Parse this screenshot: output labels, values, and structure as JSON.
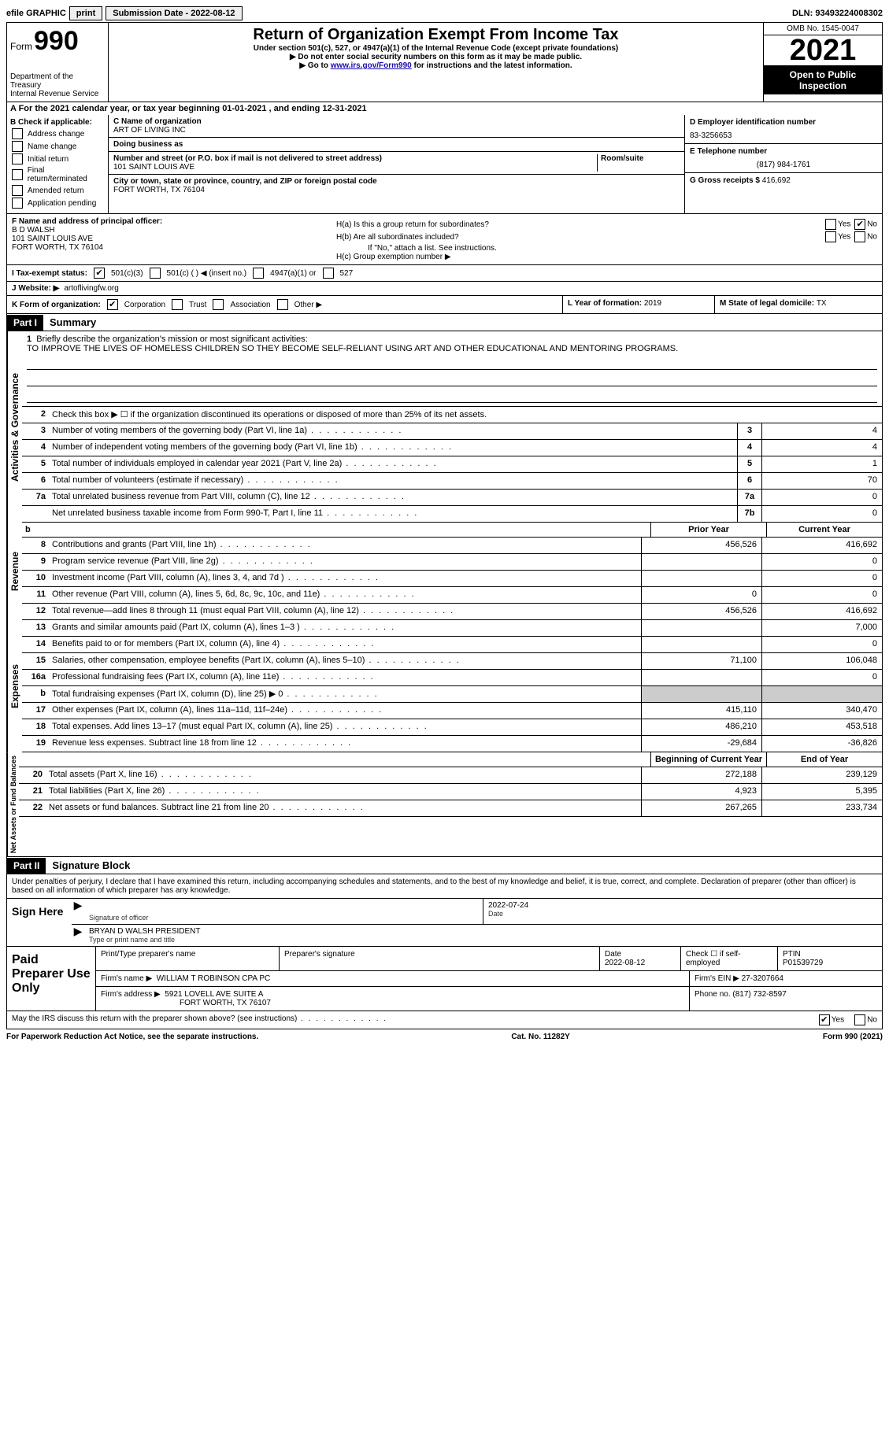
{
  "topbar": {
    "efile": "efile GRAPHIC",
    "print": "print",
    "submission_label": "Submission Date - ",
    "submission_date": "2022-08-12",
    "dln_label": "DLN: ",
    "dln": "93493224008302"
  },
  "header": {
    "form_word": "Form",
    "form_num": "990",
    "dept": "Department of the Treasury\nInternal Revenue Service",
    "title": "Return of Organization Exempt From Income Tax",
    "sub1": "Under section 501(c), 527, or 4947(a)(1) of the Internal Revenue Code (except private foundations)",
    "sub2": "▶ Do not enter social security numbers on this form as it may be made public.",
    "sub3_pre": "▶ Go to ",
    "sub3_link": "www.irs.gov/Form990",
    "sub3_post": " for instructions and the latest information.",
    "omb": "OMB No. 1545-0047",
    "year": "2021",
    "open": "Open to Public Inspection"
  },
  "calyear": {
    "line": "A For the 2021 calendar year, or tax year beginning 01-01-2021   , and ending 12-31-2021"
  },
  "boxB": {
    "label": "B Check if applicable:",
    "opts": [
      "Address change",
      "Name change",
      "Initial return",
      "Final return/terminated",
      "Amended return",
      "Application pending"
    ]
  },
  "boxC": {
    "name_label": "C Name of organization",
    "name": "ART OF LIVING INC",
    "dba_label": "Doing business as",
    "dba": "",
    "addr_label": "Number and street (or P.O. box if mail is not delivered to street address)",
    "room_label": "Room/suite",
    "addr": "101 SAINT LOUIS AVE",
    "city_label": "City or town, state or province, country, and ZIP or foreign postal code",
    "city": "FORT WORTH, TX  76104"
  },
  "boxD": {
    "ein_label": "D Employer identification number",
    "ein": "83-3256653",
    "phone_label": "E Telephone number",
    "phone": "(817) 984-1761",
    "gross_label": "G Gross receipts $ ",
    "gross": "416,692"
  },
  "boxF": {
    "label": "F Name and address of principal officer:",
    "name": "B D WALSH",
    "addr1": "101 SAINT LOUIS AVE",
    "addr2": "FORT WORTH, TX  76104"
  },
  "boxH": {
    "ha": "H(a)  Is this a group return for subordinates?",
    "hb": "H(b)  Are all subordinates included?",
    "hb_note": "If \"No,\" attach a list. See instructions.",
    "hc": "H(c)  Group exemption number ▶",
    "yes": "Yes",
    "no": "No"
  },
  "rowI": {
    "label": "I  Tax-exempt status:",
    "o1": "501(c)(3)",
    "o2": "501(c) (  ) ◀ (insert no.)",
    "o3": "4947(a)(1) or",
    "o4": "527"
  },
  "rowJ": {
    "label": "J  Website: ▶",
    "val": "artoflivingfw.org"
  },
  "rowK": {
    "label": "K Form of organization:",
    "corp": "Corporation",
    "trust": "Trust",
    "assoc": "Association",
    "other": "Other ▶",
    "L_label": "L Year of formation: ",
    "L_val": "2019",
    "M_label": "M State of legal domicile: ",
    "M_val": "TX"
  },
  "part1": {
    "tag": "Part I",
    "title": "Summary"
  },
  "mission": {
    "num": "1",
    "label": "Briefly describe the organization's mission or most significant activities:",
    "text": "TO IMPROVE THE LIVES OF HOMELESS CHILDREN SO THEY BECOME SELF-RELIANT USING ART AND OTHER EDUCATIONAL AND MENTORING PROGRAMS."
  },
  "line2": {
    "num": "2",
    "text": "Check this box ▶ ☐ if the organization discontinued its operations or disposed of more than 25% of its net assets."
  },
  "govLines": [
    {
      "n": "3",
      "d": "Number of voting members of the governing body (Part VI, line 1a)",
      "b": "3",
      "v": "4"
    },
    {
      "n": "4",
      "d": "Number of independent voting members of the governing body (Part VI, line 1b)",
      "b": "4",
      "v": "4"
    },
    {
      "n": "5",
      "d": "Total number of individuals employed in calendar year 2021 (Part V, line 2a)",
      "b": "5",
      "v": "1"
    },
    {
      "n": "6",
      "d": "Total number of volunteers (estimate if necessary)",
      "b": "6",
      "v": "70"
    },
    {
      "n": "7a",
      "d": "Total unrelated business revenue from Part VIII, column (C), line 12",
      "b": "7a",
      "v": "0"
    },
    {
      "n": "",
      "d": "Net unrelated business taxable income from Form 990-T, Part I, line 11",
      "b": "7b",
      "v": "0"
    }
  ],
  "colHeaders": {
    "b_hidden": "b",
    "prior": "Prior Year",
    "current": "Current Year"
  },
  "revLines": [
    {
      "n": "8",
      "d": "Contributions and grants (Part VIII, line 1h)",
      "p": "456,526",
      "c": "416,692"
    },
    {
      "n": "9",
      "d": "Program service revenue (Part VIII, line 2g)",
      "p": "",
      "c": "0"
    },
    {
      "n": "10",
      "d": "Investment income (Part VIII, column (A), lines 3, 4, and 7d )",
      "p": "",
      "c": "0"
    },
    {
      "n": "11",
      "d": "Other revenue (Part VIII, column (A), lines 5, 6d, 8c, 9c, 10c, and 11e)",
      "p": "0",
      "c": "0"
    },
    {
      "n": "12",
      "d": "Total revenue—add lines 8 through 11 (must equal Part VIII, column (A), line 12)",
      "p": "456,526",
      "c": "416,692"
    }
  ],
  "expLines": [
    {
      "n": "13",
      "d": "Grants and similar amounts paid (Part IX, column (A), lines 1–3 )",
      "p": "",
      "c": "7,000"
    },
    {
      "n": "14",
      "d": "Benefits paid to or for members (Part IX, column (A), line 4)",
      "p": "",
      "c": "0"
    },
    {
      "n": "15",
      "d": "Salaries, other compensation, employee benefits (Part IX, column (A), lines 5–10)",
      "p": "71,100",
      "c": "106,048"
    },
    {
      "n": "16a",
      "d": "Professional fundraising fees (Part IX, column (A), line 11e)",
      "p": "",
      "c": "0"
    },
    {
      "n": "b",
      "d": "Total fundraising expenses (Part IX, column (D), line 25) ▶ 0",
      "p": "shaded",
      "c": "shaded"
    },
    {
      "n": "17",
      "d": "Other expenses (Part IX, column (A), lines 11a–11d, 11f–24e)",
      "p": "415,110",
      "c": "340,470"
    },
    {
      "n": "18",
      "d": "Total expenses. Add lines 13–17 (must equal Part IX, column (A), line 25)",
      "p": "486,210",
      "c": "453,518"
    },
    {
      "n": "19",
      "d": "Revenue less expenses. Subtract line 18 from line 12",
      "p": "-29,684",
      "c": "-36,826"
    }
  ],
  "naHeaders": {
    "begin": "Beginning of Current Year",
    "end": "End of Year"
  },
  "naLines": [
    {
      "n": "20",
      "d": "Total assets (Part X, line 16)",
      "p": "272,188",
      "c": "239,129"
    },
    {
      "n": "21",
      "d": "Total liabilities (Part X, line 26)",
      "p": "4,923",
      "c": "5,395"
    },
    {
      "n": "22",
      "d": "Net assets or fund balances. Subtract line 21 from line 20",
      "p": "267,265",
      "c": "233,734"
    }
  ],
  "vertLabels": {
    "gov": "Activities & Governance",
    "rev": "Revenue",
    "exp": "Expenses",
    "na": "Net Assets or Fund Balances"
  },
  "part2": {
    "tag": "Part II",
    "title": "Signature Block",
    "penalty": "Under penalties of perjury, I declare that I have examined this return, including accompanying schedules and statements, and to the best of my knowledge and belief, it is true, correct, and complete. Declaration of preparer (other than officer) is based on all information of which preparer has any knowledge."
  },
  "sign": {
    "here": "Sign Here",
    "sig_label": "Signature of officer",
    "date": "2022-07-24",
    "date_label": "Date",
    "name": "BRYAN D WALSH  PRESIDENT",
    "name_label": "Type or print name and title"
  },
  "paid": {
    "title": "Paid Preparer Use Only",
    "h1": "Print/Type preparer's name",
    "h2": "Preparer's signature",
    "h3_label": "Date",
    "h3": "2022-08-12",
    "h4_label": "Check ☐ if self-employed",
    "h5_label": "PTIN",
    "h5": "P01539729",
    "firm_label": "Firm's name    ▶",
    "firm": "WILLIAM T ROBINSON CPA PC",
    "ein_label": "Firm's EIN ▶ ",
    "ein": "27-3207664",
    "addr_label": "Firm's address ▶",
    "addr1": "5921 LOVELL AVE SUITE A",
    "addr2": "FORT WORTH, TX  76107",
    "phone_label": "Phone no. ",
    "phone": "(817) 732-8597"
  },
  "discuss": {
    "text": "May the IRS discuss this return with the preparer shown above? (see instructions)",
    "yes": "Yes",
    "no": "No"
  },
  "footer": {
    "left": "For Paperwork Reduction Act Notice, see the separate instructions.",
    "mid": "Cat. No. 11282Y",
    "right": "Form 990 (2021)"
  }
}
